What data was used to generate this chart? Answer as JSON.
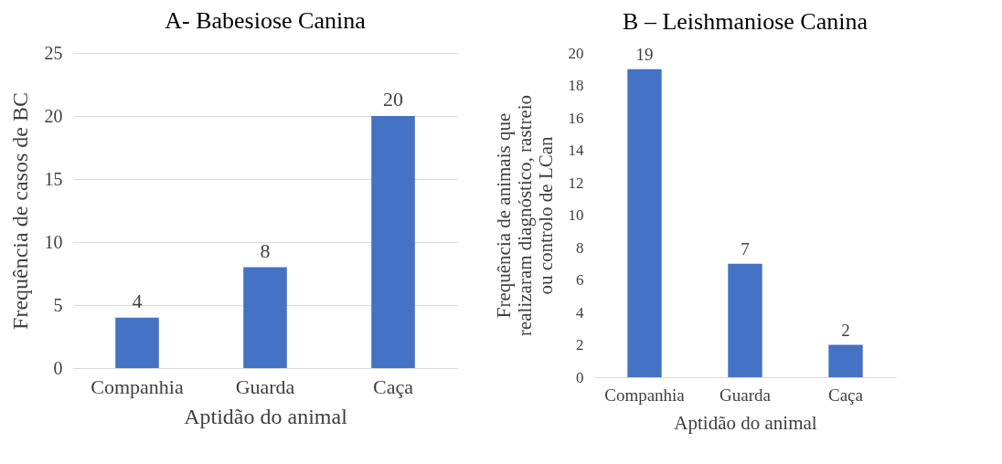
{
  "chart_data": [
    {
      "type": "bar",
      "title": "A-  Babesiose Canina",
      "xlabel": "Aptidão do animal",
      "ylabel": "Frequência de casos de BC",
      "categories": [
        "Companhia",
        "Guarda",
        "Caça"
      ],
      "values": [
        4,
        8,
        20
      ],
      "color": "#4472c4",
      "ylim": [
        0,
        25
      ],
      "yticks": [
        0,
        5,
        10,
        15,
        20,
        25
      ],
      "grid": "y",
      "data_labels": true
    },
    {
      "type": "bar",
      "title": "B – Leishmaniose Canina",
      "xlabel": "Aptidão do animal",
      "ylabel": "Frequência de animais que realizaram diagnóstico, rastreio ou controlo de LCan",
      "categories": [
        "Companhia",
        "Guarda",
        "Caça"
      ],
      "values": [
        19,
        7,
        2
      ],
      "color": "#4472c4",
      "ylim": [
        0,
        20
      ],
      "yticks": [
        0,
        2,
        4,
        6,
        8,
        10,
        12,
        14,
        16,
        18,
        20
      ],
      "grid": false,
      "data_labels": true
    }
  ]
}
